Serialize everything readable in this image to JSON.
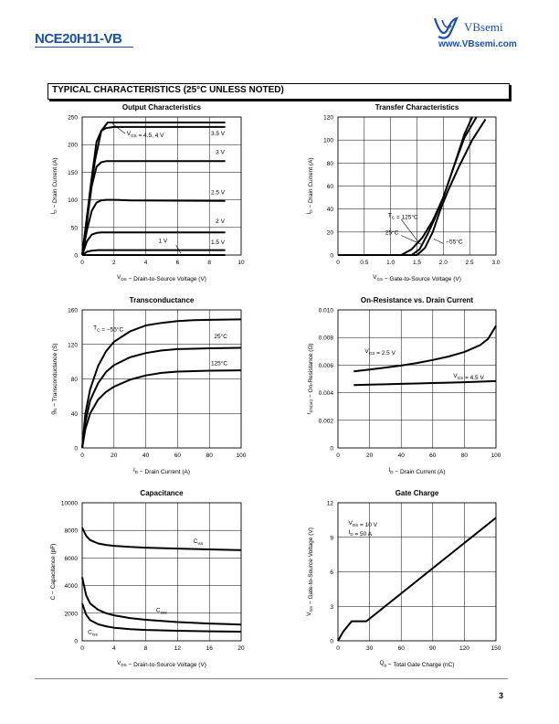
{
  "header": {
    "part_number": "NCE20H11-VB",
    "brand": "VBsemi",
    "url": "www.VBsemi.com"
  },
  "section_title": "TYPICAL CHARACTERISTICS (25°C UNLESS NOTED)",
  "page_number": "3",
  "chart_data": [
    {
      "id": "output",
      "type": "line",
      "title": "Output Characteristics",
      "xlabel": "V_DS − Drain-to-Source Voltage (V)",
      "ylabel": "I_D − Drain Current (A)",
      "xlim": [
        0,
        10
      ],
      "ylim": [
        0,
        250
      ],
      "xticks": [
        0,
        2,
        4,
        6,
        8,
        10
      ],
      "yticks": [
        0,
        50,
        100,
        150,
        200,
        250
      ],
      "grid": true,
      "series": [
        {
          "name": "V_GS = 4.5, 4 V",
          "x": [
            0,
            0.4,
            0.8,
            1.2,
            1.6,
            2.0,
            3,
            9
          ],
          "y": [
            0,
            90,
            170,
            225,
            240,
            240,
            240,
            240
          ]
        },
        {
          "name": "3.5 V",
          "x": [
            0,
            0.3,
            0.6,
            0.9,
            1.2,
            1.5,
            2.0,
            3,
            9
          ],
          "y": [
            0,
            70,
            140,
            205,
            225,
            230,
            232,
            232,
            232
          ]
        },
        {
          "name": "3 V",
          "x": [
            0,
            0.3,
            0.6,
            0.9,
            1.2,
            1.5,
            2,
            3,
            9
          ],
          "y": [
            0,
            60,
            125,
            160,
            168,
            170,
            170,
            170,
            170
          ]
        },
        {
          "name": "2.5 V",
          "x": [
            0,
            0.3,
            0.6,
            0.9,
            1.2,
            1.5,
            2,
            3,
            9
          ],
          "y": [
            0,
            45,
            80,
            95,
            99,
            100,
            100,
            99,
            98
          ]
        },
        {
          "name": "2 V",
          "x": [
            0,
            0.3,
            0.6,
            0.9,
            1.2,
            2,
            3,
            9
          ],
          "y": [
            0,
            25,
            37,
            40,
            41,
            41,
            41,
            41
          ]
        },
        {
          "name": "1.5 V",
          "x": [
            0,
            0.3,
            0.6,
            1.0,
            2,
            9
          ],
          "y": [
            0,
            6,
            8,
            9,
            9,
            9
          ]
        },
        {
          "name": "1 V",
          "x": [
            0,
            9
          ],
          "y": [
            0,
            0
          ]
        }
      ],
      "annotations": [
        {
          "text": "V_GS = 4.5, 4 V",
          "x": 2.8,
          "y": 217
        },
        {
          "text": "3.5 V",
          "x": 8.1,
          "y": 217
        },
        {
          "text": "3 V",
          "x": 8.4,
          "y": 183
        },
        {
          "text": "2.5 V",
          "x": 8.1,
          "y": 110
        },
        {
          "text": "2 V",
          "x": 8.4,
          "y": 58
        },
        {
          "text": "1 V",
          "x": 4.8,
          "y": 22
        },
        {
          "text": "1.5 V",
          "x": 8.1,
          "y": 20
        }
      ]
    },
    {
      "id": "transfer",
      "type": "line",
      "title": "Transfer Characteristics",
      "xlabel": "V_GS − Gate-to-Source Voltage (V)",
      "ylabel": "I_D − Drain Current (A)",
      "xlim": [
        0,
        3.0
      ],
      "ylim": [
        0,
        120
      ],
      "xticks": [
        "0",
        "0.5",
        "1.0",
        "1.5",
        "2.0",
        "2.5",
        "3.0"
      ],
      "yticks": [
        0,
        20,
        40,
        60,
        80,
        100,
        120
      ],
      "grid": true,
      "series": [
        {
          "name": "T_C = 125°C",
          "x": [
            0,
            1.2,
            1.4,
            1.6,
            1.8,
            2.0,
            2.2,
            2.4,
            2.55
          ],
          "y": [
            0,
            0,
            5,
            15,
            30,
            50,
            77,
            105,
            120
          ]
        },
        {
          "name": "25°C",
          "x": [
            0,
            1.4,
            1.55,
            1.7,
            1.85,
            2.0,
            2.2,
            2.4,
            2.63
          ],
          "y": [
            0,
            0,
            5,
            18,
            33,
            50,
            77,
            102,
            120
          ]
        },
        {
          "name": "−55°C",
          "x": [
            0,
            1.5,
            1.65,
            1.8,
            1.95,
            2.1,
            2.3,
            2.55,
            2.8
          ],
          "y": [
            0,
            0,
            6,
            20,
            40,
            57,
            77,
            100,
            118
          ]
        }
      ],
      "annotations": [
        {
          "text": "T_C = 125°C",
          "x": 0.95,
          "y": 33
        },
        {
          "text": "25°C",
          "x": 0.9,
          "y": 18
        },
        {
          "text": "−55°C",
          "x": 2.05,
          "y": 10
        }
      ]
    },
    {
      "id": "transconductance",
      "type": "line",
      "title": "Transconductance",
      "xlabel": "I_D − Drain Current (A)",
      "ylabel": "g_fs − Transconductance (S)",
      "xlim": [
        0,
        100
      ],
      "ylim": [
        0,
        160
      ],
      "xticks": [
        0,
        20,
        40,
        60,
        80,
        100
      ],
      "yticks": [
        0,
        40,
        80,
        120,
        160
      ],
      "grid": true,
      "series": [
        {
          "name": "T_C = −55°C",
          "x": [
            0,
            2,
            5,
            10,
            15,
            20,
            30,
            40,
            50,
            60,
            70,
            80,
            100
          ],
          "y": [
            0,
            40,
            68,
            95,
            112,
            123,
            135,
            142,
            145,
            147,
            148,
            148.5,
            149
          ]
        },
        {
          "name": "25°C",
          "x": [
            0,
            2,
            5,
            10,
            15,
            20,
            30,
            40,
            50,
            60,
            70,
            80,
            100
          ],
          "y": [
            0,
            30,
            55,
            75,
            88,
            96,
            105,
            110,
            113,
            114.5,
            115,
            115.5,
            116
          ]
        },
        {
          "name": "125°C",
          "x": [
            0,
            2,
            5,
            10,
            15,
            20,
            30,
            40,
            50,
            60,
            70,
            80,
            100
          ],
          "y": [
            0,
            22,
            40,
            56,
            65,
            71,
            79,
            84,
            87,
            88.5,
            89,
            89.5,
            90
          ]
        }
      ],
      "annotations": [
        {
          "text": "T_C = −55°C",
          "x": 7,
          "y": 137
        },
        {
          "text": "25°C",
          "x": 83,
          "y": 127
        },
        {
          "text": "125°C",
          "x": 81,
          "y": 96
        }
      ]
    },
    {
      "id": "onresistance",
      "type": "line",
      "title": "On-Resistance vs. Drain Current",
      "xlabel": "I_D − Drain Current (A)",
      "ylabel": "r_DS(on) − On-Resistance (Ω)",
      "xlim": [
        0,
        100
      ],
      "ylim": [
        0,
        0.01
      ],
      "xticks": [
        0,
        20,
        40,
        60,
        80,
        100
      ],
      "yticks": [
        "0",
        "0.002",
        "0.004",
        "0.006",
        "0.008",
        "0.010"
      ],
      "grid": true,
      "series": [
        {
          "name": "V_GS = 2.5 V",
          "x": [
            10,
            20,
            30,
            40,
            50,
            60,
            70,
            80,
            90,
            95,
            100
          ],
          "y": [
            0.00555,
            0.00568,
            0.00582,
            0.00597,
            0.00615,
            0.00637,
            0.00662,
            0.00695,
            0.00745,
            0.0079,
            0.00885
          ]
        },
        {
          "name": "V_GS = 4.5 V",
          "x": [
            10,
            20,
            30,
            40,
            50,
            60,
            70,
            80,
            90,
            100
          ],
          "y": [
            0.00455,
            0.00458,
            0.00461,
            0.00464,
            0.00467,
            0.0047,
            0.00473,
            0.00476,
            0.0048,
            0.00484
          ]
        }
      ],
      "annotations": [
        {
          "text": "V_GS = 2.5 V",
          "x": 17,
          "y": 0.0069
        },
        {
          "text": "V_GS = 4.5 V",
          "x": 73,
          "y": 0.0051
        }
      ]
    },
    {
      "id": "capacitance",
      "type": "line",
      "title": "Capacitance",
      "xlabel": "V_DS − Drain-to-Source Voltage (V)",
      "ylabel": "C − Capacitance (pF)",
      "xlim": [
        0,
        20
      ],
      "ylim": [
        0,
        10000
      ],
      "xticks": [
        0,
        4,
        8,
        12,
        16,
        20
      ],
      "yticks": [
        0,
        2000,
        4000,
        6000,
        8000,
        10000
      ],
      "grid": true,
      "series": [
        {
          "name": "C_iss",
          "x": [
            0,
            0.5,
            1,
            2,
            3,
            4,
            6,
            8,
            12,
            16,
            20
          ],
          "y": [
            8200,
            7600,
            7300,
            7050,
            6950,
            6880,
            6800,
            6750,
            6680,
            6620,
            6570
          ]
        },
        {
          "name": "C_oss",
          "x": [
            0,
            0.5,
            1,
            2,
            3,
            4,
            6,
            8,
            12,
            16,
            20
          ],
          "y": [
            4600,
            3300,
            2700,
            2250,
            2000,
            1850,
            1650,
            1520,
            1360,
            1250,
            1180
          ]
        },
        {
          "name": "C_rss",
          "x": [
            0,
            0.5,
            1,
            2,
            3,
            4,
            6,
            8,
            12,
            16,
            20
          ],
          "y": [
            2700,
            1900,
            1500,
            1200,
            1050,
            950,
            850,
            790,
            730,
            690,
            660
          ]
        }
      ],
      "annotations": [
        {
          "text": "C_iss",
          "x": 14,
          "y": 7100
        },
        {
          "text": "C_oss",
          "x": 9.3,
          "y": 2100
        },
        {
          "text": "C_rss",
          "x": 0.7,
          "y": 500
        }
      ]
    },
    {
      "id": "gatecharge",
      "type": "line",
      "title": "Gate Charge",
      "xlabel": "Q_g − Total Gate Charge (nC)",
      "ylabel": "V_GS − Gate-to-Source Voltage (V)",
      "xlim": [
        0,
        150
      ],
      "ylim": [
        0,
        12
      ],
      "xticks": [
        0,
        30,
        60,
        90,
        120,
        150
      ],
      "yticks": [
        0,
        3,
        6,
        9,
        12
      ],
      "grid": true,
      "series": [
        {
          "name": "V_GS",
          "x": [
            0,
            5,
            13,
            27,
            150
          ],
          "y": [
            0,
            0.8,
            1.7,
            1.7,
            10.7
          ]
        }
      ],
      "annotations": [
        {
          "text": "V_DS = 10 V",
          "x": 10,
          "y": 10.1
        },
        {
          "text": "I_D = 50 A",
          "x": 10,
          "y": 9.3
        }
      ]
    }
  ]
}
